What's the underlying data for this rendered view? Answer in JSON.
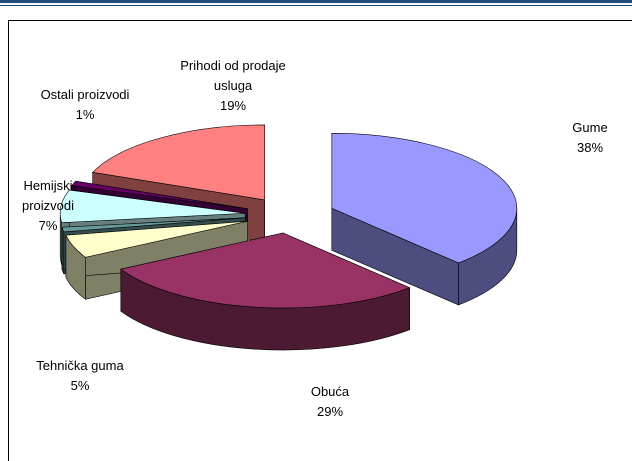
{
  "chart_data": {
    "type": "pie",
    "categories": [
      "Gume",
      "Obuća",
      "Tehnička guma",
      null,
      "Hemijski proizvodi",
      "Ostali proizvodi",
      "Prihodi od prodaje usluga"
    ],
    "values": [
      38,
      29,
      5,
      1,
      7,
      1,
      19
    ],
    "value_labels": [
      "38%",
      "29%",
      "5%",
      null,
      "7%",
      "1%",
      "19%"
    ],
    "colors": [
      "#9999ff",
      "#993366",
      "#ffffcc",
      "#669999",
      "#ccffff",
      "#660066",
      "#ff8080"
    ]
  }
}
